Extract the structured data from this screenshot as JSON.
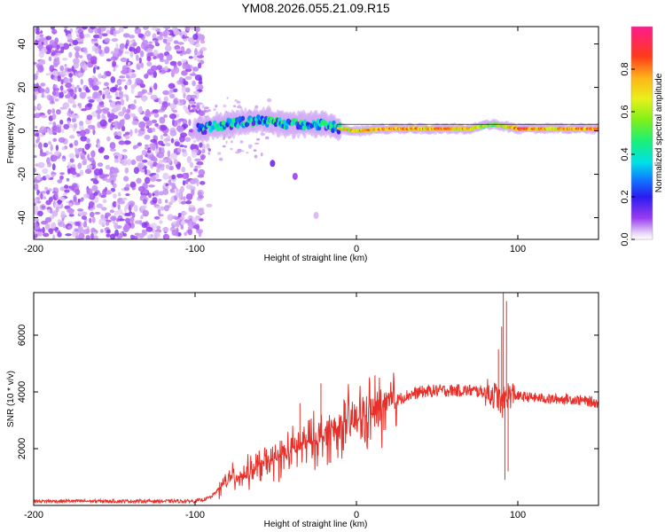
{
  "title": "YM08.2026.055.21.09.R15",
  "chart_data": [
    {
      "type": "heatmap",
      "name": "spectrogram",
      "xlabel": "Height of straight line (km)",
      "ylabel": "Frequency (Hz)",
      "xlim": [
        -200,
        150
      ],
      "ylim": [
        -50,
        48
      ],
      "xticks": [
        -200,
        -100,
        0,
        100
      ],
      "xtick_labels": [
        "-200",
        "-100",
        "0",
        "100"
      ],
      "yticks": [
        -40,
        -20,
        0,
        20,
        40
      ],
      "ytick_labels": [
        "-40",
        "-20",
        "0",
        "20",
        "40"
      ],
      "noise_region_x": [
        -200,
        -95
      ],
      "signal_line": {
        "x_start": -100,
        "x_end": 150,
        "center_frequency_hz": 1,
        "points": [
          {
            "x": -95,
            "y": 1,
            "amp": 0.3
          },
          {
            "x": -80,
            "y": 3,
            "amp": 0.4
          },
          {
            "x": -60,
            "y": 5,
            "amp": 0.45
          },
          {
            "x": -40,
            "y": 3,
            "amp": 0.4
          },
          {
            "x": -20,
            "y": 3,
            "amp": 0.45
          },
          {
            "x": -10,
            "y": 1,
            "amp": 0.7
          },
          {
            "x": 0,
            "y": 0,
            "amp": 0.75
          },
          {
            "x": 20,
            "y": 1,
            "amp": 0.8
          },
          {
            "x": 50,
            "y": 1,
            "amp": 0.8
          },
          {
            "x": 70,
            "y": 1,
            "amp": 0.75
          },
          {
            "x": 85,
            "y": 3,
            "amp": 0.55
          },
          {
            "x": 100,
            "y": 1,
            "amp": 0.85
          },
          {
            "x": 120,
            "y": 1,
            "amp": 0.75
          },
          {
            "x": 150,
            "y": 1,
            "amp": 0.8
          }
        ]
      },
      "colorbar": {
        "label": "Normalized spectral amplitude",
        "range": [
          0.0,
          1.0
        ],
        "ticks": [
          0.0,
          0.2,
          0.4,
          0.6,
          0.8
        ],
        "tick_labels": [
          "0.0",
          "0.2",
          "0.4",
          "0.6",
          "0.8"
        ]
      }
    },
    {
      "type": "line",
      "name": "snr",
      "xlabel": "Height of straight line (km)",
      "ylabel": "SNR (10 * v/v)",
      "xlim": [
        -200,
        150
      ],
      "ylim": [
        0,
        7500
      ],
      "xticks": [
        -200,
        -100,
        0,
        100
      ],
      "xtick_labels": [
        "-200",
        "-100",
        "0",
        "100"
      ],
      "yticks": [
        2000,
        4000,
        6000
      ],
      "ytick_labels": [
        "2000",
        "4000",
        "6000"
      ],
      "color": "#e8302a",
      "series": [
        {
          "name": "SNR",
          "x": [
            -200,
            -180,
            -160,
            -140,
            -120,
            -100,
            -95,
            -90,
            -85,
            -80,
            -75,
            -70,
            -65,
            -60,
            -55,
            -50,
            -45,
            -40,
            -35,
            -30,
            -25,
            -20,
            -15,
            -10,
            -5,
            0,
            5,
            10,
            15,
            20,
            25,
            30,
            40,
            50,
            60,
            70,
            80,
            85,
            88,
            90,
            92,
            94,
            96,
            100,
            110,
            120,
            130,
            140,
            150
          ],
          "values": [
            150,
            150,
            150,
            150,
            150,
            150,
            200,
            300,
            600,
            900,
            1000,
            1100,
            1200,
            1400,
            1500,
            1600,
            1800,
            1900,
            2100,
            2200,
            2300,
            2500,
            2600,
            2800,
            2900,
            3000,
            3100,
            3250,
            3400,
            3500,
            3700,
            3850,
            4000,
            4050,
            4050,
            4050,
            4000,
            3900,
            3800,
            3500,
            3800,
            3900,
            3900,
            3850,
            3800,
            3750,
            3750,
            3700,
            3600
          ],
          "spikes": [
            {
              "x": -22,
              "value": 4300
            },
            {
              "x": -35,
              "value": 3600
            },
            {
              "x": 88,
              "value": 5500
            },
            {
              "x": 90,
              "value": 6300
            },
            {
              "x": 91,
              "value": 7500
            },
            {
              "x": 92,
              "value": 900
            },
            {
              "x": 93,
              "value": 7200
            },
            {
              "x": 94,
              "value": 1200
            }
          ]
        }
      ]
    }
  ]
}
